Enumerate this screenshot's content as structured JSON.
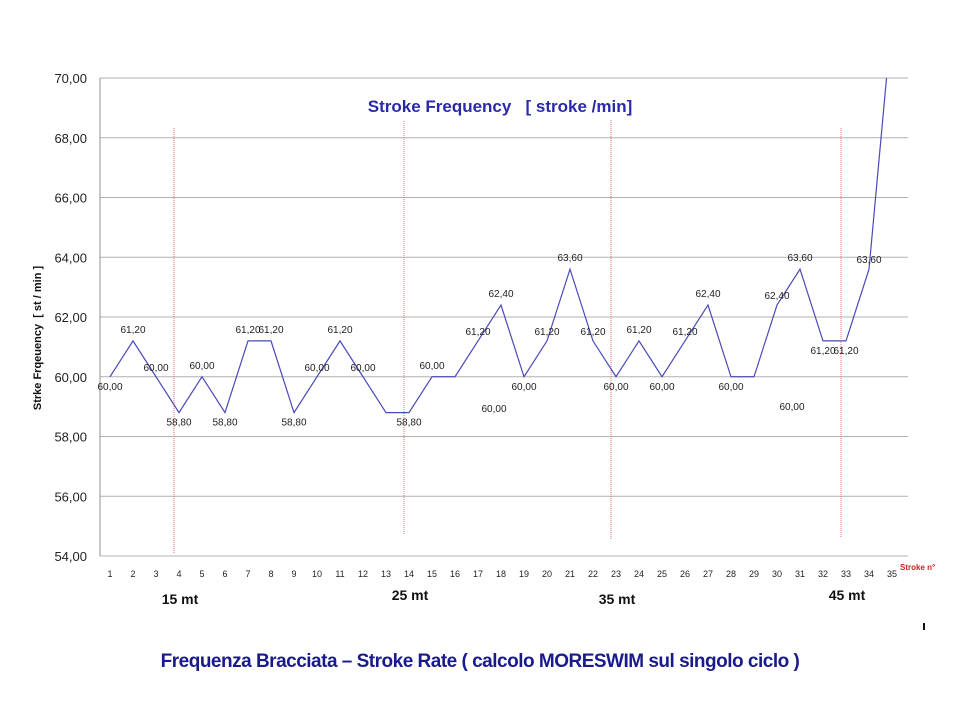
{
  "chart_data": {
    "type": "line",
    "title": "Stroke Frequency   [ stroke /min]",
    "ylabel": "Strke Frqeuency  [ st / min ]",
    "xlabel": "Stroke n°",
    "ylim": [
      54,
      70
    ],
    "yticks": [
      "54,00",
      "56,00",
      "58,00",
      "60,00",
      "62,00",
      "64,00",
      "66,00",
      "68,00",
      "70,00"
    ],
    "grid": true,
    "categories": [
      "1",
      "2",
      "3",
      "4",
      "5",
      "6",
      "7",
      "8",
      "9",
      "10",
      "11",
      "12",
      "13",
      "14",
      "15",
      "16",
      "17",
      "18",
      "19",
      "20",
      "21",
      "22",
      "23",
      "24",
      "25",
      "26",
      "27",
      "28",
      "29",
      "30",
      "31",
      "32",
      "33",
      "34",
      "35"
    ],
    "series": [
      {
        "color": "#4a4ab8",
        "values": [
          60.0,
          61.2,
          60.0,
          58.8,
          60.0,
          58.8,
          61.2,
          61.2,
          58.8,
          60.0,
          61.2,
          60.0,
          58.8,
          58.8,
          60.0,
          60.0,
          61.2,
          62.4,
          60.0,
          61.2,
          63.6,
          61.2,
          60.0,
          61.2,
          60.0,
          61.2,
          62.4,
          60.0,
          60.0,
          62.4,
          63.6,
          61.2,
          61.2,
          63.6,
          72.0
        ]
      }
    ],
    "data_labels": [
      "60,00",
      "61,20",
      "60,00",
      "58,80",
      "60,00",
      "58,80",
      "61,20",
      "61,20",
      "58,80",
      "60,00",
      "61,20",
      "60,00",
      "",
      "58,80",
      "60,00",
      "",
      "61,20",
      "62,40",
      "60,00",
      "61,20",
      "63,60",
      "61,20",
      "60,00",
      "61,20",
      "60,00",
      "61,20",
      "62,40",
      "60,00",
      "",
      "62,40",
      "63,60",
      "61,20",
      "61,20",
      "63,60",
      ""
    ],
    "extra_labels": [
      "60,00",
      "60,00"
    ],
    "markers": [
      {
        "at": 4,
        "label": "15 mt"
      },
      {
        "at": 14,
        "label": "25 mt"
      },
      {
        "at": 23,
        "label": "35 mt"
      },
      {
        "at": 33,
        "label": "45 mt"
      }
    ],
    "marker_color": "#e07070",
    "grid_color": "#b0b0b0"
  },
  "caption": "Frequenza Bracciata – Stroke Rate  ( calcolo MORESWIM  sul singolo ciclo )"
}
